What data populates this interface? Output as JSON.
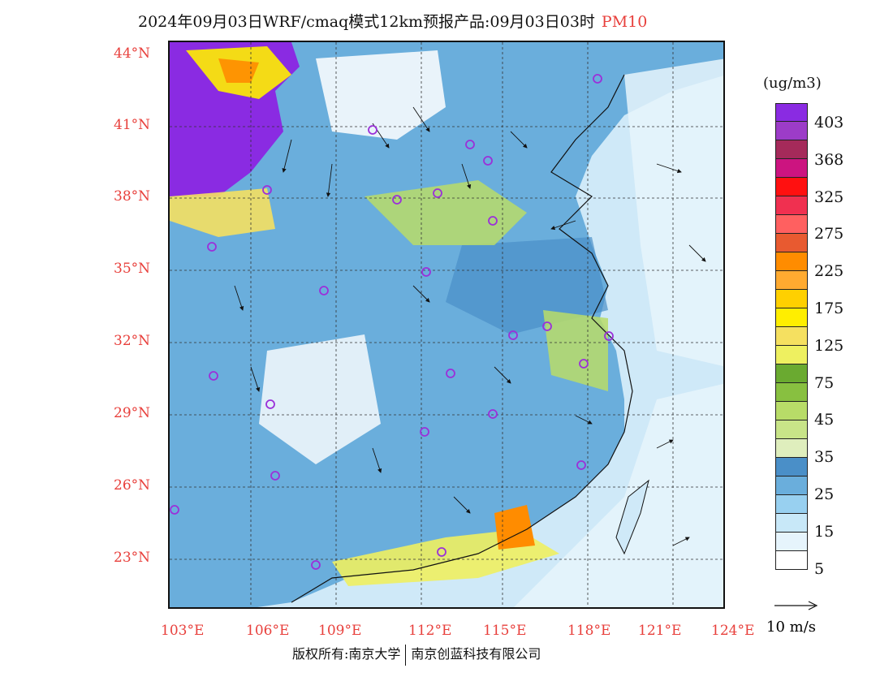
{
  "title": {
    "main": "2024年09月03日WRF/cmaq模式12km预报产品:09月03日03时",
    "pollutant": "PM10"
  },
  "axes": {
    "lat_labels": [
      "44°N",
      "41°N",
      "38°N",
      "35°N",
      "32°N",
      "29°N",
      "26°N",
      "23°N"
    ],
    "lon_labels": [
      "103°E",
      "106°E",
      "109°E",
      "112°E",
      "115°E",
      "118°E",
      "121°E",
      "124°E"
    ]
  },
  "legend": {
    "unit": "(ug/m3)",
    "colors": [
      "#8a2be2",
      "#9c3cc8",
      "#a52a5a",
      "#cc1480",
      "#ff1010",
      "#f03050",
      "#ff6060",
      "#e85a30",
      "#ff8c00",
      "#ffaa30",
      "#ffd000",
      "#ffee00",
      "#f5e060",
      "#eef060",
      "#6aaa30",
      "#88c040",
      "#b8dc68",
      "#c8e488",
      "#dfeebd",
      "#4a8fc8",
      "#6aaedc",
      "#98d0f0",
      "#c8e8f8",
      "#e6f4fc",
      "#ffffff"
    ],
    "labels": [
      "403",
      "368",
      "325",
      "275",
      "225",
      "175",
      "125",
      "75",
      "45",
      "35",
      "25",
      "15",
      "5"
    ]
  },
  "wind_scale": {
    "label": "10 m/s"
  },
  "copyright": {
    "left": "版权所有:南京大学",
    "right": "南京创蓝科技有限公司"
  },
  "colors": {
    "accent": "#e8403c",
    "station_marker": "#9b30d9"
  }
}
